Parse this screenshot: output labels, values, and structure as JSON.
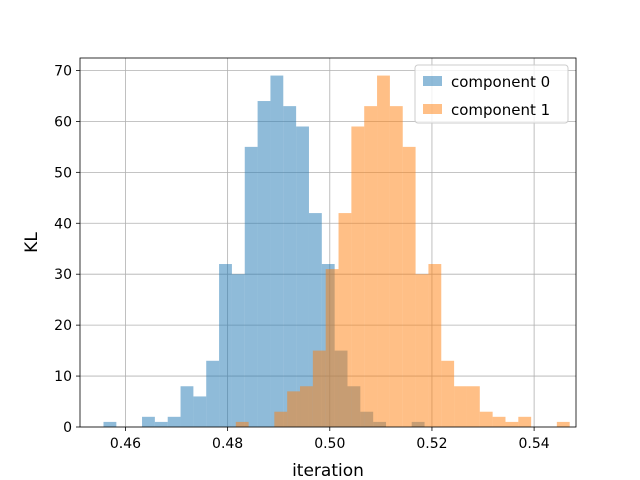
{
  "chart_data": {
    "type": "histogram",
    "xlabel": "iteration",
    "ylabel": "KL",
    "xlim": [
      0.4511,
      0.5482
    ],
    "ylim": [
      0,
      72.45
    ],
    "grid": true,
    "legend_position": "top-right",
    "x_ticks": [
      {
        "value": 0.46,
        "label": "0.46"
      },
      {
        "value": 0.48,
        "label": "0.48"
      },
      {
        "value": 0.5,
        "label": "0.50"
      },
      {
        "value": 0.52,
        "label": "0.52"
      },
      {
        "value": 0.54,
        "label": "0.54"
      }
    ],
    "y_ticks": [
      {
        "value": 0,
        "label": "0"
      },
      {
        "value": 10,
        "label": "10"
      },
      {
        "value": 20,
        "label": "20"
      },
      {
        "value": 30,
        "label": "30"
      },
      {
        "value": 40,
        "label": "40"
      },
      {
        "value": 50,
        "label": "50"
      },
      {
        "value": 60,
        "label": "60"
      },
      {
        "value": 70,
        "label": "70"
      }
    ],
    "series": [
      {
        "name": "component 0",
        "color": "#1f77b4",
        "opacity": 0.5,
        "bin_start": 0.4557,
        "bin_width": 0.002514,
        "counts": [
          1,
          0,
          0,
          2,
          1,
          2,
          8,
          6,
          13,
          32,
          30,
          55,
          64,
          69,
          63,
          59,
          42,
          32,
          15,
          8,
          3,
          1,
          0,
          0,
          1
        ]
      },
      {
        "name": "component 1",
        "color": "#ff7f0e",
        "opacity": 0.5,
        "bin_start": 0.4816,
        "bin_width": 0.002514,
        "counts": [
          1,
          0,
          0,
          3,
          7,
          8,
          15,
          31,
          42,
          59,
          63,
          69,
          63,
          55,
          30,
          32,
          13,
          8,
          8,
          3,
          2,
          1,
          2,
          0,
          0,
          1
        ]
      }
    ]
  }
}
